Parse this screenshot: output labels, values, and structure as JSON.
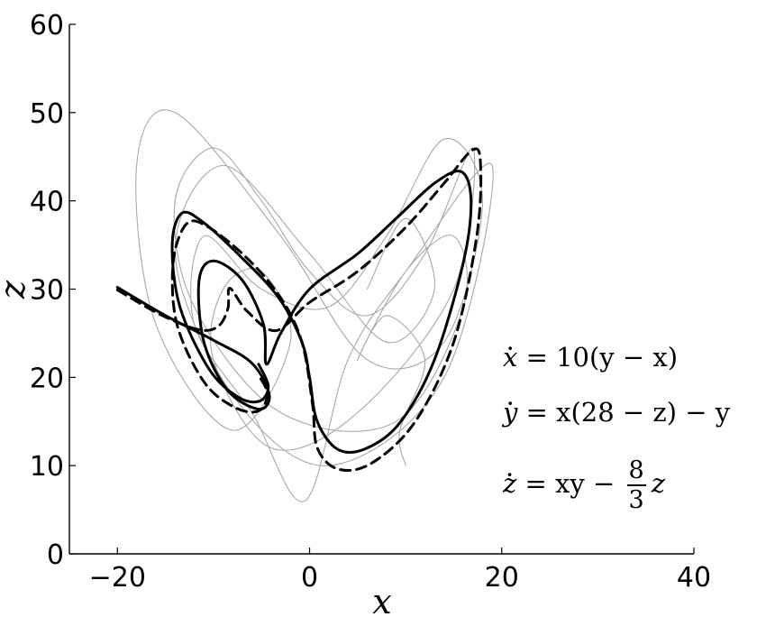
{
  "chart_data": {
    "type": "line",
    "title": "",
    "xlabel": "x",
    "ylabel": "z",
    "xlim": [
      -25,
      40
    ],
    "ylim": [
      0,
      60
    ],
    "xticks": [
      "−20",
      "0",
      "20",
      "40"
    ],
    "yticks": [
      "0",
      "10",
      "20",
      "30",
      "40",
      "50",
      "60"
    ],
    "grid": false,
    "system": {
      "sigma": 10,
      "rho": 28,
      "beta": "8/3"
    },
    "series": [
      {
        "kind": "background trajectory",
        "color": "#a8a8a8",
        "points": [
          [
            10,
            10
          ],
          [
            9.4,
            14
          ],
          [
            12,
            22
          ],
          [
            8,
            27
          ],
          [
            5,
            22
          ],
          [
            10,
            32
          ],
          [
            15,
            36
          ],
          [
            16,
            28
          ],
          [
            9,
            15
          ],
          [
            -3,
            16
          ],
          [
            -12,
            28
          ],
          [
            -14,
            40
          ],
          [
            -10,
            46
          ],
          [
            -5,
            40
          ],
          [
            0,
            32
          ],
          [
            6,
            27
          ],
          [
            12,
            34
          ],
          [
            17,
            46
          ],
          [
            15,
            30
          ],
          [
            5,
            16
          ],
          [
            -4,
            12
          ],
          [
            -10,
            22
          ],
          [
            -9,
            30
          ],
          [
            -5,
            32
          ],
          [
            -2,
            24
          ],
          [
            -8,
            14
          ],
          [
            -16,
            26
          ],
          [
            -18,
            44
          ],
          [
            -14,
            50
          ],
          [
            -3,
            36
          ],
          [
            6,
            22
          ],
          [
            14,
            24
          ],
          [
            18,
            40
          ],
          [
            14,
            47
          ],
          [
            8,
            36
          ],
          [
            2,
            28
          ],
          [
            -5,
            30
          ],
          [
            -11,
            36
          ],
          [
            -12,
            26
          ],
          [
            -6,
            16
          ],
          [
            -0.5,
            6
          ],
          [
            4,
            22
          ],
          [
            10,
            32
          ],
          [
            19,
            44
          ],
          [
            14,
            20
          ],
          [
            2,
            10
          ],
          [
            -8,
            18
          ],
          [
            -14,
            34
          ],
          [
            -9,
            44
          ],
          [
            0,
            34
          ],
          [
            8,
            24
          ],
          [
            13,
            30
          ],
          [
            10,
            38
          ],
          [
            6,
            30
          ]
        ]
      },
      {
        "kind": "solid trajectory",
        "color": "#000000",
        "points": [
          [
            -20,
            30.2
          ],
          [
            -15,
            27
          ],
          [
            -10,
            24.2
          ],
          [
            -6,
            21.6
          ],
          [
            -4.2,
            18
          ],
          [
            -5.3,
            16.4
          ],
          [
            -8.5,
            18.5
          ],
          [
            -11,
            24
          ],
          [
            -11.5,
            31
          ],
          [
            -10,
            33.2
          ],
          [
            -7,
            31
          ],
          [
            -4.8,
            26
          ],
          [
            -4.5,
            21.5
          ],
          [
            -3,
            25
          ],
          [
            0,
            30
          ],
          [
            5,
            34
          ],
          [
            9,
            38
          ],
          [
            13,
            42
          ],
          [
            15.8,
            43.3
          ],
          [
            16.8,
            40
          ],
          [
            16,
            33
          ],
          [
            13,
            22
          ],
          [
            9.5,
            15
          ],
          [
            6,
            12
          ],
          [
            3,
            11.8
          ],
          [
            0.8,
            15
          ],
          [
            0,
            20
          ],
          [
            -0.8,
            24
          ],
          [
            -3.2,
            29
          ],
          [
            -7,
            33.5
          ],
          [
            -11,
            37.5
          ],
          [
            -13.3,
            38.6
          ],
          [
            -14.3,
            35
          ],
          [
            -13.5,
            28
          ],
          [
            -10.5,
            21
          ],
          [
            -7.5,
            17.8
          ],
          [
            -5.2,
            17.3
          ],
          [
            -4.3,
            19
          ],
          [
            -5.3,
            21.5
          ]
        ]
      },
      {
        "kind": "dashed trajectory",
        "color": "#000000",
        "points": [
          [
            -20,
            29.9
          ],
          [
            -15.5,
            27.1
          ],
          [
            -11.5,
            25.4
          ],
          [
            -9.5,
            25.8
          ],
          [
            -8.5,
            27.8
          ],
          [
            -8.3,
            30.1
          ],
          [
            -6.5,
            27.5
          ],
          [
            -3.5,
            25.3
          ],
          [
            0,
            28.5
          ],
          [
            5,
            32
          ],
          [
            10,
            37
          ],
          [
            14,
            42
          ],
          [
            17,
            45.8
          ],
          [
            17.8,
            44
          ],
          [
            17.4,
            36
          ],
          [
            15,
            24
          ],
          [
            11,
            15
          ],
          [
            6.5,
            10.3
          ],
          [
            3,
            9.6
          ],
          [
            0.8,
            12
          ],
          [
            0.3,
            17
          ],
          [
            -0.8,
            24
          ],
          [
            -3,
            29
          ],
          [
            -6.5,
            33.5
          ],
          [
            -10.5,
            37
          ],
          [
            -12.8,
            37.4
          ],
          [
            -14.2,
            33
          ],
          [
            -13.8,
            26
          ],
          [
            -11,
            19.5
          ],
          [
            -7.8,
            16.6
          ],
          [
            -5.3,
            16.2
          ],
          [
            -4.4,
            18.2
          ],
          [
            -5.4,
            20.4
          ]
        ]
      }
    ],
    "equations": {
      "x": {
        "lhs": "x",
        "rhs": "= 10(y − x)"
      },
      "y": {
        "lhs": "y",
        "rhs": "= x(28 − z) − y"
      },
      "z": {
        "lhs": "z",
        "rhs": "= xy −",
        "frac_num": "8",
        "frac_den": "3",
        "tail": "z"
      }
    }
  }
}
